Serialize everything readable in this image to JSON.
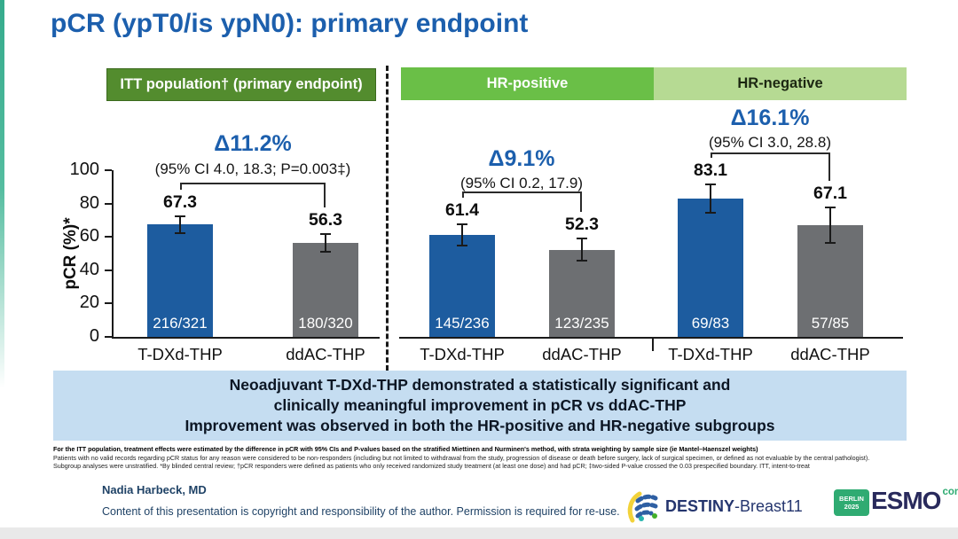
{
  "title": "pCR (ypT0/is ypN0): primary endpoint",
  "panels": {
    "itt": {
      "label": "ITT population† (primary endpoint)",
      "bg": "#538c2e",
      "text_color": "#ffffff"
    },
    "hr_positive": {
      "label": "HR-positive",
      "bg": "#6abf47",
      "text_color": "#ffffff"
    },
    "hr_negative": {
      "label": "HR-negative",
      "bg": "#b6da93",
      "text_color": "#1c2712"
    }
  },
  "chart_data": {
    "type": "bar",
    "title": "pCR (ypT0/is ypN0): primary endpoint",
    "ylabel": "pCR (%)*",
    "ylim": [
      0,
      100
    ],
    "yticks": [
      0,
      20,
      40,
      60,
      80,
      100
    ],
    "grid": false,
    "groups": [
      {
        "name": "ITT population† (primary endpoint)",
        "delta_label": "Δ11.2%",
        "ci_label": "(95% CI 4.0, 18.3; P=0.003‡)",
        "bars": [
          {
            "label": "T-DXd-THP",
            "value": 67.3,
            "count": "216/321",
            "err_est": 5.2,
            "color": "#1d5c9f"
          },
          {
            "label": "ddAC-THP",
            "value": 56.3,
            "count": "180/320",
            "err_est": 5.5,
            "color": "#6d6f72"
          }
        ]
      },
      {
        "name": "HR-positive",
        "delta_label": "Δ9.1%",
        "ci_label": "(95% CI 0.2, 17.9)",
        "bars": [
          {
            "label": "T-DXd-THP",
            "value": 61.4,
            "count": "145/236",
            "err_est": 6.4,
            "color": "#1d5c9f"
          },
          {
            "label": "ddAC-THP",
            "value": 52.3,
            "count": "123/235",
            "err_est": 6.6,
            "color": "#6d6f72"
          }
        ]
      },
      {
        "name": "HR-negative",
        "delta_label": "Δ16.1%",
        "ci_label": "(95% CI 3.0, 28.8)",
        "bars": [
          {
            "label": "T-DXd-THP",
            "value": 83.1,
            "count": "69/83",
            "err_est": 8.5,
            "color": "#1d5c9f"
          },
          {
            "label": "ddAC-THP",
            "value": 67.1,
            "count": "57/85",
            "err_est": 10.5,
            "color": "#6d6f72"
          }
        ]
      }
    ]
  },
  "summary_box": {
    "bg": "#c5ddf1",
    "lines": [
      "Neoadjuvant T-DXd-THP demonstrated a statistically significant and",
      "clinically meaningful improvement in pCR vs ddAC-THP",
      "Improvement was observed in both the HR-positive and HR-negative subgroups"
    ]
  },
  "footnotes": [
    "For the ITT population, treatment effects were estimated by the difference in pCR with 95% CIs and P-values based on the stratified Miettinen and Nurminen's method, with strata weighting by sample size (ie Mantel–Haenszel weights)",
    "Patients with no valid records regarding pCR status for any reason were considered to be non-responders (including but not limited to withdrawal from the study, progression of disease or death before surgery, lack of surgical specimen, or defined as not evaluable by the central pathologist).",
    "Subgroup analyses were unstratified. *By blinded central review; †pCR responders were defined as patients who only received randomized study treatment (at least one dose) and had pCR; ‡two-sided P-value crossed the 0.03 prespecified boundary. ITT, intent-to-treat"
  ],
  "footer": {
    "author": "Nadia Harbeck, MD",
    "copyright": "Content of this presentation is copyright and responsibility of the author. Permission is required for re-use."
  },
  "logos": {
    "destiny": {
      "bold": "DESTINY",
      "rest": "-Breast11"
    },
    "esmo": {
      "badge_line1": "BERLIN",
      "badge_line2": "2025",
      "name": "ESMO",
      "suffix": "congress",
      "green": "#2fab72",
      "navy": "#292a5c"
    }
  },
  "colors": {
    "title": "#1c5fad",
    "delta": "#1c5fad",
    "bar_blue": "#1d5c9f",
    "bar_gray": "#6d6f72",
    "axis": "#1a1a1a"
  }
}
